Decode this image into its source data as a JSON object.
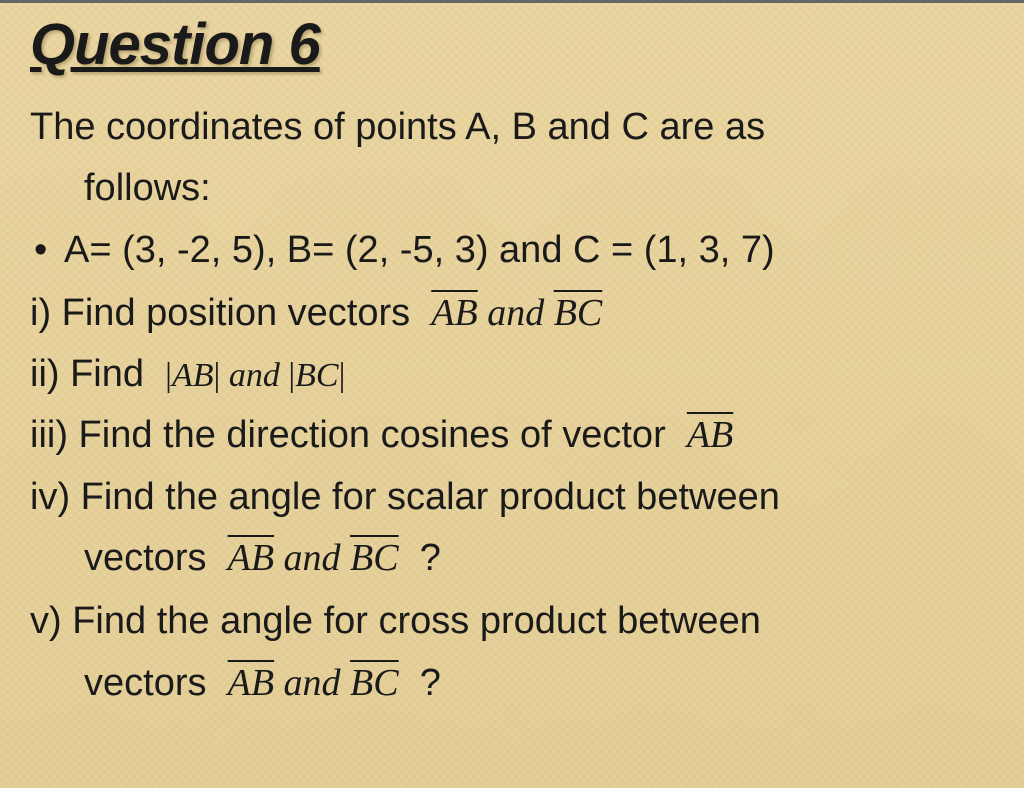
{
  "title": "Question 6",
  "intro_line1": "The coordinates of points A, B and C are as",
  "intro_line2": "follows:",
  "bullet": "A= (3, -2, 5), B= (2, -5, 3) and C = (1, 3, 7)",
  "part_i_prefix": "i) Find position vectors  ",
  "vec_ab": "AB",
  "and_word": " and ",
  "vec_bc": "BC",
  "part_ii_prefix": "ii) Find  ",
  "abs_open": "|",
  "abs_close": "|",
  "part_iii_prefix": "iii) Find the direction cosines of vector  ",
  "part_iv_line1": "iv) Find the angle for scalar product between",
  "part_iv_line2_prefix": "vectors  ",
  "question_mark": "  ?",
  "part_v_line1": "v) Find the angle for cross product between",
  "part_v_line2_prefix": "vectors  ",
  "colors": {
    "background": "#e8d4a0",
    "text": "#1a1a1a",
    "shadow": "rgba(100,80,40,0.4)"
  },
  "fonts": {
    "body_family": "Arial",
    "math_family": "Times New Roman",
    "title_size_pt": 44,
    "body_size_pt": 29
  }
}
